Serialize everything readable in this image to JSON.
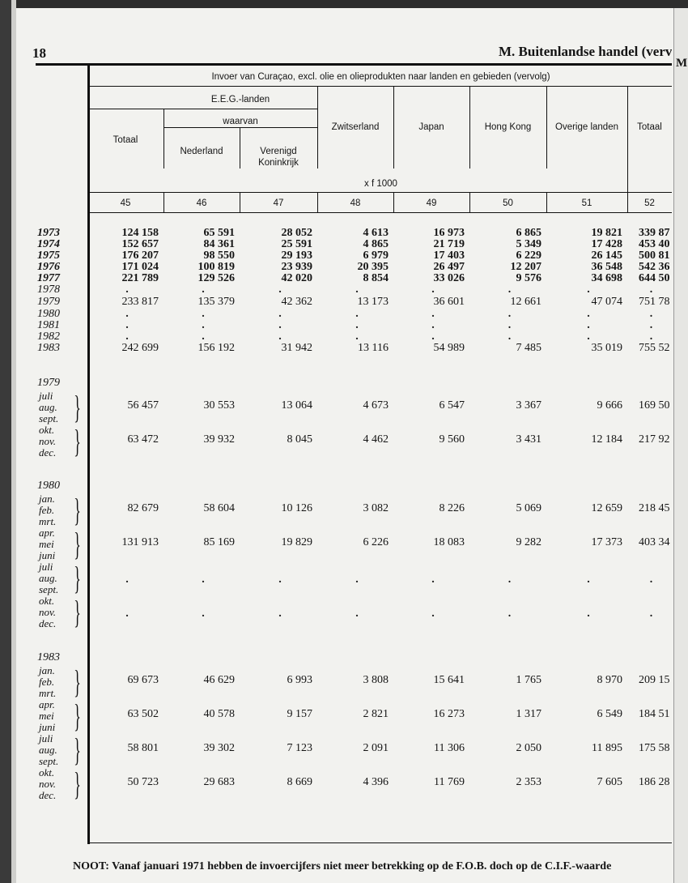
{
  "page": {
    "number": "18",
    "running_head": "M. Buitenlandse handel (vervolg)",
    "next_page_letter": "M"
  },
  "table": {
    "title": "Invoer van Curaçao, excl. olie en olieprodukten naar landen en gebieden (vervolg)",
    "group_eeg": "E.E.G.-landen",
    "group_waarvan": "waarvan",
    "unit": "x f 1000",
    "columns": [
      {
        "label": "Totaal",
        "number": "45"
      },
      {
        "label": "Nederland",
        "number": "46"
      },
      {
        "label": "Verenigd Koninkrijk",
        "number": "47"
      },
      {
        "label": "Zwitserland",
        "number": "48"
      },
      {
        "label": "Japan",
        "number": "49"
      },
      {
        "label": "Hong Kong",
        "number": "50"
      },
      {
        "label": "Overige landen",
        "number": "51"
      },
      {
        "label": "Totaal",
        "number": "52"
      }
    ],
    "annual": [
      {
        "year": "1973",
        "values": [
          "124 158",
          "65 591",
          "28 052",
          "4 613",
          "16 973",
          "6 865",
          "19 821",
          "339 87"
        ]
      },
      {
        "year": "1974",
        "values": [
          "152 657",
          "84 361",
          "25 591",
          "4 865",
          "21 719",
          "5 349",
          "17 428",
          "453 40"
        ]
      },
      {
        "year": "1975",
        "values": [
          "176 207",
          "98 550",
          "29 193",
          "6 979",
          "17 403",
          "6 229",
          "26 145",
          "500 81"
        ]
      },
      {
        "year": "1976",
        "values": [
          "171 024",
          "100 819",
          "23 939",
          "20 395",
          "26 497",
          "12 207",
          "36 548",
          "542 36"
        ]
      },
      {
        "year": "1977",
        "values": [
          "221 789",
          "129 526",
          "42 020",
          "8 854",
          "33 026",
          "9 576",
          "34 698",
          "644 50"
        ]
      },
      {
        "year": "1978",
        "values": [
          ".",
          ".",
          ".",
          ".",
          ".",
          ".",
          ".",
          "."
        ]
      },
      {
        "year": "1979",
        "values": [
          "233 817",
          "135 379",
          "42 362",
          "13 173",
          "36 601",
          "12 661",
          "47 074",
          "751 78"
        ]
      },
      {
        "year": "1980",
        "values": [
          ".",
          ".",
          ".",
          ".",
          ".",
          ".",
          ".",
          "."
        ]
      },
      {
        "year": "1981",
        "values": [
          ".",
          ".",
          ".",
          ".",
          ".",
          ".",
          ".",
          "."
        ]
      },
      {
        "year": "1982",
        "values": [
          ".",
          ".",
          ".",
          ".",
          ".",
          ".",
          ".",
          "."
        ]
      },
      {
        "year": "1983",
        "values": [
          "242 699",
          "156 192",
          "31 942",
          "13 116",
          "54 989",
          "7 485",
          "35 019",
          "755 52"
        ]
      }
    ],
    "periods": [
      {
        "year": "1979",
        "quarters": [
          {
            "months": [
              "juli",
              "aug.",
              "sept."
            ],
            "values": [
              "56 457",
              "30 553",
              "13 064",
              "4 673",
              "6 547",
              "3 367",
              "9 666",
              "169 50"
            ]
          },
          {
            "months": [
              "okt.",
              "nov.",
              "dec."
            ],
            "values": [
              "63 472",
              "39 932",
              "8 045",
              "4 462",
              "9 560",
              "3 431",
              "12 184",
              "217 92"
            ]
          }
        ]
      },
      {
        "year": "1980",
        "quarters": [
          {
            "months": [
              "jan.",
              "feb.",
              "mrt."
            ],
            "values": [
              "82 679",
              "58 604",
              "10 126",
              "3 082",
              "8 226",
              "5 069",
              "12 659",
              "218 45"
            ]
          },
          {
            "months": [
              "apr.",
              "mei",
              "juni"
            ],
            "values": [
              "131 913",
              "85 169",
              "19 829",
              "6 226",
              "18 083",
              "9 282",
              "17 373",
              "403 34"
            ]
          },
          {
            "months": [
              "juli",
              "aug.",
              "sept."
            ],
            "values": [
              ".",
              ".",
              ".",
              ".",
              ".",
              ".",
              ".",
              "."
            ]
          },
          {
            "months": [
              "okt.",
              "nov.",
              "dec."
            ],
            "values": [
              ".",
              ".",
              ".",
              ".",
              ".",
              ".",
              ".",
              "."
            ]
          }
        ]
      },
      {
        "year": "1983",
        "quarters": [
          {
            "months": [
              "jan.",
              "feb.",
              "mrt."
            ],
            "values": [
              "69 673",
              "46 629",
              "6 993",
              "3 808",
              "15 641",
              "1 765",
              "8 970",
              "209 15"
            ]
          },
          {
            "months": [
              "apr.",
              "mei",
              "juni"
            ],
            "values": [
              "63 502",
              "40 578",
              "9 157",
              "2 821",
              "16 273",
              "1 317",
              "6 549",
              "184 51"
            ]
          },
          {
            "months": [
              "juli",
              "aug.",
              "sept."
            ],
            "values": [
              "58 801",
              "39 302",
              "7 123",
              "2 091",
              "11 306",
              "2 050",
              "11 895",
              "175 58"
            ]
          },
          {
            "months": [
              "okt.",
              "nov.",
              "dec."
            ],
            "values": [
              "50 723",
              "29 683",
              "8 669",
              "4 396",
              "11 769",
              "2 353",
              "7 605",
              "186 28"
            ]
          }
        ]
      }
    ]
  },
  "footnote": "NOOT: Vanaf januari 1971 hebben de invoercijfers niet meer betrekking op de F.O.B. doch op de C.I.F.-waarde"
}
